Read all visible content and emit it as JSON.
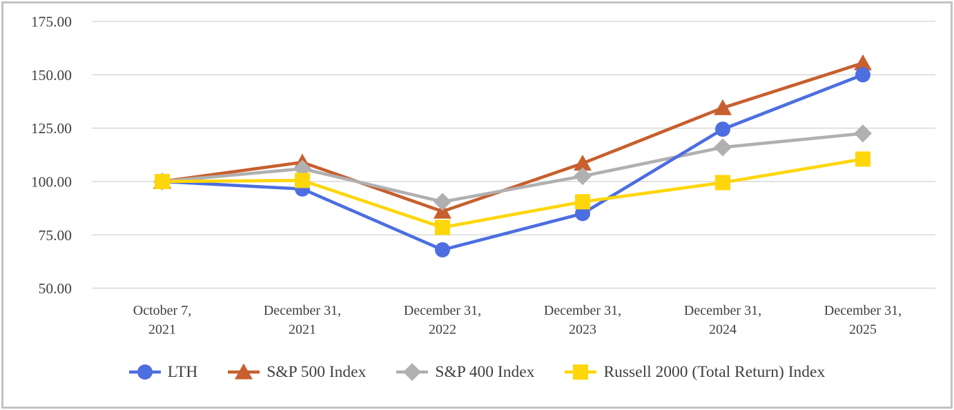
{
  "chart_data": {
    "type": "line",
    "title": "",
    "xlabel": "",
    "ylabel": "",
    "categories": [
      "October 7, 2021",
      "December 31, 2021",
      "December 31, 2022",
      "December 31, 2023",
      "December 31, 2024",
      "December 31, 2025"
    ],
    "category_label_lines": [
      [
        "October 7,",
        "2021"
      ],
      [
        "December 31,",
        "2021"
      ],
      [
        "December 31,",
        "2022"
      ],
      [
        "December 31,",
        "2023"
      ],
      [
        "December 31,",
        "2024"
      ],
      [
        "December 31,",
        "2025"
      ]
    ],
    "series": [
      {
        "name": "LTH",
        "marker": "circle",
        "color": "#4C6EE0",
        "values": [
          100.0,
          96.5,
          68.0,
          85.0,
          124.5,
          150.0
        ]
      },
      {
        "name": "S&P 500 Index",
        "marker": "triangle",
        "color": "#C75F2E",
        "values": [
          100.0,
          109.0,
          86.0,
          108.5,
          134.5,
          155.5
        ]
      },
      {
        "name": "S&P 400 Index",
        "marker": "diamond",
        "color": "#B0B0B0",
        "values": [
          100.0,
          106.0,
          90.5,
          102.5,
          116.0,
          122.5
        ]
      },
      {
        "name": "Russell 2000 (Total Return) Index",
        "marker": "square",
        "color": "#FFD60A",
        "values": [
          100.0,
          100.5,
          78.5,
          90.5,
          99.5,
          110.5
        ]
      }
    ],
    "ylim": [
      50,
      175
    ],
    "yticks": [
      175,
      150,
      125,
      100,
      75,
      50
    ],
    "ytick_labels": [
      "175.00",
      "150.00",
      "125.00",
      "100.00",
      "75.00",
      "50.00"
    ],
    "grid": true,
    "legend_position": "bottom",
    "colors": {
      "gridline": "#DBDBDB",
      "axis_text": "#3F3F3F",
      "background": "#FFFFFF",
      "border": "#C2C2C2"
    }
  }
}
